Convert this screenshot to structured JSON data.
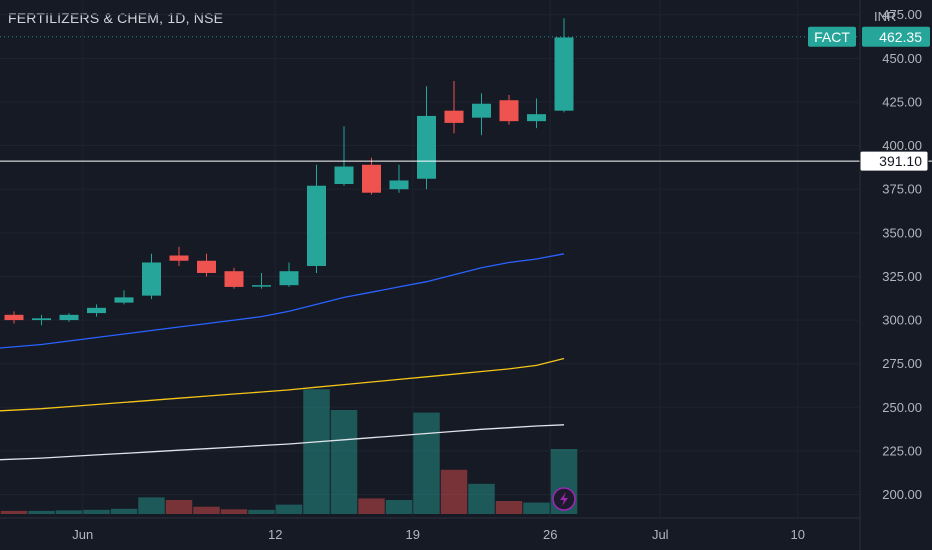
{
  "header": {
    "title": "FERTILIZERS & CHEM, 1D, NSE",
    "currency": "INR"
  },
  "badges": {
    "symbol": "FACT",
    "price_label": "462.35",
    "price": 462.35,
    "hline_label": "391.10",
    "hline": 391.1
  },
  "colors": {
    "background": "#161a25",
    "up": "#26a69a",
    "down": "#ef5350",
    "vol_up": "#26a69a",
    "vol_down": "#ef5350",
    "ma_blue": "#2962ff",
    "ma_yellow": "#f5c518",
    "ma_white": "#e0e3eb",
    "hline": "#ffffff",
    "badge": "#26a69a",
    "flash": "#9c27b0"
  },
  "chart_data": {
    "type": "candlestick",
    "title": "FERTILIZERS & CHEM, 1D, NSE",
    "ylim": [
      190,
      480
    ],
    "y_ticks": [
      200,
      225,
      250,
      275,
      300,
      325,
      350,
      375,
      400,
      425,
      450,
      475
    ],
    "y_tick_labels": [
      "200.00",
      "225.00",
      "250.00",
      "275.00",
      "300.00",
      "325.00",
      "350.00",
      "375.00",
      "400.00",
      "425.00",
      "450.00",
      "475.00"
    ],
    "x_ticks": [
      {
        "label": "Jun",
        "bar": 2.5
      },
      {
        "label": "12",
        "bar": 9.5
      },
      {
        "label": "19",
        "bar": 14.5
      },
      {
        "label": "26",
        "bar": 19.5
      },
      {
        "label": "Jul",
        "bar": 23.5
      },
      {
        "label": "10",
        "bar": 28.5
      }
    ],
    "candles": [
      {
        "o": 303,
        "h": 305,
        "l": 298,
        "c": 300
      },
      {
        "o": 300,
        "h": 303,
        "l": 297,
        "c": 301
      },
      {
        "o": 300,
        "h": 304,
        "l": 299,
        "c": 303
      },
      {
        "o": 304,
        "h": 309,
        "l": 302,
        "c": 307
      },
      {
        "o": 310,
        "h": 317,
        "l": 309,
        "c": 313
      },
      {
        "o": 314,
        "h": 338,
        "l": 312,
        "c": 333
      },
      {
        "o": 337,
        "h": 342,
        "l": 331,
        "c": 334
      },
      {
        "o": 334,
        "h": 338,
        "l": 325,
        "c": 327
      },
      {
        "o": 328,
        "h": 330,
        "l": 318,
        "c": 319
      },
      {
        "o": 320,
        "h": 327,
        "l": 318,
        "c": 320
      },
      {
        "o": 320,
        "h": 333,
        "l": 319,
        "c": 328
      },
      {
        "o": 331,
        "h": 389,
        "l": 327,
        "c": 377
      },
      {
        "o": 378,
        "h": 411,
        "l": 377,
        "c": 388
      },
      {
        "o": 389,
        "h": 393,
        "l": 372,
        "c": 373
      },
      {
        "o": 375,
        "h": 389,
        "l": 373,
        "c": 380
      },
      {
        "o": 381,
        "h": 434,
        "l": 375,
        "c": 417
      },
      {
        "o": 420,
        "h": 437,
        "l": 407,
        "c": 413
      },
      {
        "o": 416,
        "h": 430,
        "l": 406,
        "c": 424
      },
      {
        "o": 426,
        "h": 429,
        "l": 412,
        "c": 414
      },
      {
        "o": 414,
        "h": 427,
        "l": 410,
        "c": 418
      },
      {
        "o": 420,
        "h": 473,
        "l": 419,
        "c": 462
      }
    ],
    "volume": [
      0.06,
      0.06,
      0.07,
      0.08,
      0.1,
      0.32,
      0.27,
      0.14,
      0.09,
      0.08,
      0.18,
      2.4,
      2.0,
      0.3,
      0.27,
      1.95,
      0.85,
      0.58,
      0.25,
      0.22,
      1.25
    ],
    "volume_scale_max": 2.5,
    "moving_averages": [
      {
        "color": "blue",
        "values": [
          284,
          286,
          288,
          290,
          292,
          294,
          296,
          298,
          300,
          302,
          305,
          309,
          313,
          316,
          319,
          322,
          326,
          330,
          333,
          335,
          338
        ]
      },
      {
        "color": "yellow",
        "values": [
          248,
          249.2,
          250.4,
          251.6,
          252.8,
          254,
          255.2,
          256.4,
          257.6,
          258.8,
          260,
          261.5,
          263,
          264.5,
          266,
          267.5,
          269,
          270.5,
          272,
          274,
          278
        ]
      },
      {
        "color": "white",
        "values": [
          220,
          220.9,
          221.8,
          222.7,
          223.6,
          224.5,
          225.4,
          226.3,
          227.2,
          228.1,
          229,
          230.2,
          231.4,
          232.6,
          233.8,
          235,
          236.2,
          237.4,
          238.3,
          239.3,
          240
        ]
      }
    ]
  }
}
